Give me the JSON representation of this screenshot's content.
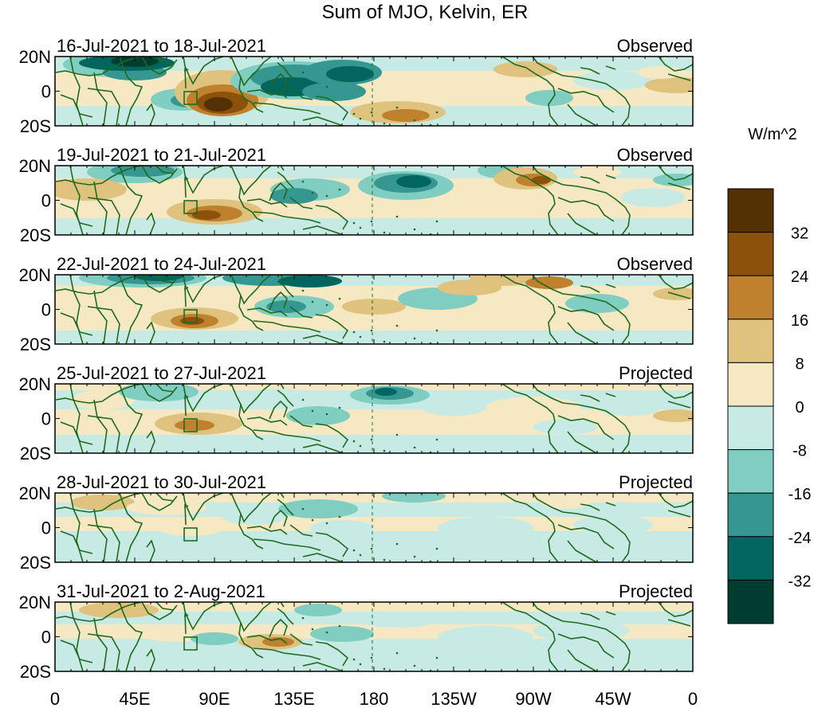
{
  "title": "Sum of MJO, Kelvin, ER",
  "colorbar": {
    "unit": "W/m^2",
    "ticks": [
      "32",
      "24",
      "16",
      "8",
      "0",
      "-8",
      "-16",
      "-24",
      "-32"
    ],
    "colors_top_to_bottom": [
      "#543005",
      "#8c510a",
      "#bf812d",
      "#dfc27d",
      "#f6e8c3",
      "#c7eae5",
      "#80cdc1",
      "#35978f",
      "#01665e",
      "#003c30"
    ]
  },
  "x_axis": {
    "ticks": [
      "0",
      "45E",
      "90E",
      "135E",
      "180",
      "135W",
      "90W",
      "45W",
      "0"
    ]
  },
  "y_axis": {
    "ticks": [
      "20N",
      "0",
      "20S"
    ]
  },
  "coastline_color": "#1e6b1e",
  "panels": [
    {
      "date_range": "16-Jul-2021 to 18-Jul-2021",
      "status": "Observed"
    },
    {
      "date_range": "19-Jul-2021 to 21-Jul-2021",
      "status": "Observed"
    },
    {
      "date_range": "22-Jul-2021 to 24-Jul-2021",
      "status": "Observed"
    },
    {
      "date_range": "25-Jul-2021 to 27-Jul-2021",
      "status": "Projected"
    },
    {
      "date_range": "28-Jul-2021 to 30-Jul-2021",
      "status": "Projected"
    },
    {
      "date_range": "31-Jul-2021 to 2-Aug-2021",
      "status": "Projected"
    }
  ]
}
